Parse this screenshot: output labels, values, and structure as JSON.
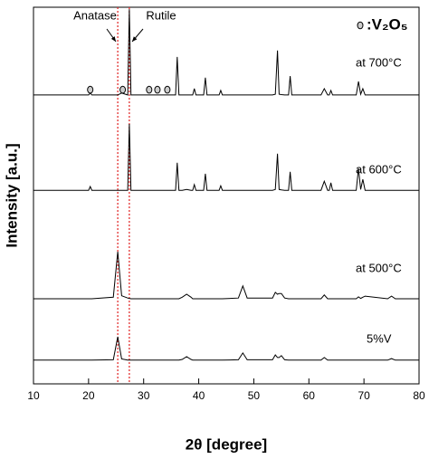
{
  "chart_data": {
    "type": "line",
    "xlabel": "2θ [degree]",
    "ylabel": "Intensity [a.u.]",
    "xlim": [
      10,
      80
    ],
    "xticks": [
      10,
      20,
      30,
      40,
      50,
      60,
      70,
      80
    ],
    "ylim": [
      0,
      100
    ],
    "x": [
      10,
      20.0,
      20.3,
      20.6,
      24.5,
      25.3,
      26.0,
      27.1,
      27.4,
      27.7,
      35.8,
      36.1,
      36.4,
      37.0,
      37.8,
      38.6,
      38.9,
      39.2,
      39.5,
      40.9,
      41.2,
      41.5,
      43.7,
      44.0,
      44.3,
      47.2,
      48.0,
      48.8,
      53.4,
      53.9,
      54.3,
      54.6,
      55.0,
      55.6,
      56.3,
      56.6,
      56.9,
      62.2,
      62.8,
      63.4,
      63.7,
      64.0,
      64.3,
      68.6,
      69.0,
      69.4,
      69.8,
      70.2,
      74.3,
      75.0,
      75.7,
      80
    ],
    "series": [
      {
        "name": "5%V",
        "color": "#000000",
        "values": [
          6.3,
          6.3,
          6.3,
          6.3,
          6.4,
          12.5,
          6.6,
          6.3,
          6.3,
          6.3,
          6.3,
          6.3,
          6.3,
          6.5,
          7.2,
          6.5,
          6.3,
          6.3,
          6.3,
          6.3,
          6.3,
          6.3,
          6.3,
          6.3,
          6.3,
          6.4,
          8.2,
          6.4,
          6.4,
          7.7,
          7.0,
          7.0,
          7.5,
          6.4,
          6.3,
          6.3,
          6.3,
          6.3,
          7.0,
          6.3,
          6.3,
          6.3,
          6.3,
          6.3,
          6.3,
          6.3,
          6.3,
          6.3,
          6.3,
          6.7,
          6.3,
          6.3
        ]
      },
      {
        "name": "at 500°C",
        "color": "#000000",
        "values": [
          22.6,
          22.6,
          22.6,
          22.6,
          23.0,
          35.1,
          23.4,
          22.8,
          22.7,
          22.6,
          22.6,
          22.6,
          22.6,
          23.0,
          23.8,
          23.0,
          22.6,
          22.6,
          22.6,
          22.6,
          22.6,
          22.6,
          22.6,
          22.6,
          22.6,
          22.8,
          26.0,
          22.8,
          22.8,
          24.3,
          23.8,
          24.0,
          24.0,
          22.8,
          22.6,
          22.6,
          22.6,
          22.6,
          23.6,
          22.6,
          22.6,
          22.6,
          22.6,
          22.6,
          23.1,
          22.7,
          23.0,
          23.3,
          22.6,
          23.3,
          22.6,
          22.6
        ]
      },
      {
        "name": "at 600°C",
        "color": "#000000",
        "values": [
          51.4,
          51.4,
          52.4,
          51.4,
          51.4,
          51.4,
          51.4,
          51.4,
          69.0,
          51.4,
          51.4,
          58.7,
          51.4,
          51.4,
          51.6,
          51.4,
          51.4,
          52.9,
          51.4,
          51.4,
          55.8,
          51.4,
          51.4,
          52.6,
          51.4,
          51.4,
          51.4,
          51.4,
          51.4,
          51.6,
          61.1,
          51.6,
          51.5,
          51.4,
          51.4,
          56.3,
          51.4,
          51.4,
          53.8,
          51.4,
          51.4,
          53.4,
          51.4,
          51.4,
          57.2,
          51.6,
          54.3,
          51.4,
          51.4,
          51.4,
          51.4,
          51.4
        ]
      },
      {
        "name": "at 700°C",
        "color": "#000000",
        "values": [
          76.7,
          76.7,
          77.2,
          76.7,
          76.7,
          76.7,
          77.2,
          76.7,
          99.5,
          76.7,
          76.7,
          86.8,
          76.7,
          76.7,
          76.7,
          76.7,
          76.7,
          78.4,
          76.7,
          76.7,
          81.3,
          76.7,
          76.7,
          77.9,
          76.7,
          76.7,
          76.7,
          76.7,
          76.7,
          76.9,
          88.5,
          76.9,
          76.8,
          76.7,
          76.7,
          81.7,
          76.7,
          76.7,
          78.4,
          76.7,
          76.7,
          77.9,
          76.7,
          76.7,
          80.3,
          76.9,
          78.4,
          76.7,
          76.7,
          76.7,
          76.7,
          76.7
        ]
      }
    ],
    "reference_lines": [
      {
        "x": 25.3,
        "label": "Anatase",
        "color": "#e02020"
      },
      {
        "x": 27.4,
        "label": "Rutile",
        "color": "#e02020"
      }
    ],
    "markers": {
      "label": ":V₂O₅",
      "x": [
        20.3,
        26.2,
        31.0,
        32.5,
        34.3
      ],
      "y": 78.1
    }
  }
}
